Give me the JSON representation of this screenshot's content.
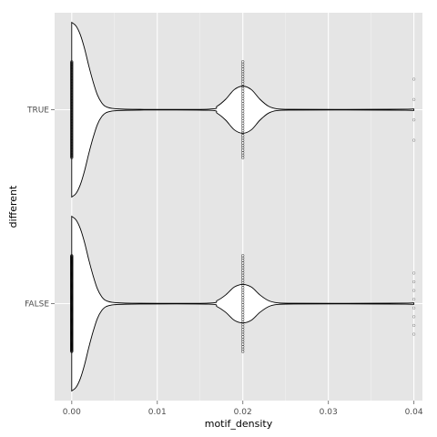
{
  "chart_data": {
    "type": "violin",
    "orientation": "horizontal",
    "xlabel": "motif_density",
    "ylabel": "different",
    "xlim": [
      -0.002,
      0.041
    ],
    "x_ticks": [
      0.0,
      0.01,
      0.02,
      0.03,
      0.04
    ],
    "x_tick_labels": [
      "0.00",
      "0.01",
      "0.02",
      "0.03",
      "0.04"
    ],
    "categories": [
      "FALSE",
      "TRUE"
    ],
    "grid": true,
    "background": "#e5e5e5",
    "grid_color": "#ffffff",
    "violin_fill": "#ffffff",
    "violin_stroke": "#000000",
    "point_color": "#000000",
    "violins": [
      {
        "category": "TRUE",
        "profile": [
          [
            0.0,
            1.0
          ],
          [
            0.0005,
            0.96
          ],
          [
            0.001,
            0.86
          ],
          [
            0.0015,
            0.7
          ],
          [
            0.002,
            0.5
          ],
          [
            0.0025,
            0.32
          ],
          [
            0.003,
            0.17
          ],
          [
            0.0035,
            0.08
          ],
          [
            0.004,
            0.035
          ],
          [
            0.005,
            0.012
          ],
          [
            0.008,
            0.004
          ],
          [
            0.016,
            0.006
          ],
          [
            0.017,
            0.04
          ],
          [
            0.018,
            0.12
          ],
          [
            0.019,
            0.23
          ],
          [
            0.02,
            0.27
          ],
          [
            0.021,
            0.23
          ],
          [
            0.022,
            0.12
          ],
          [
            0.023,
            0.04
          ],
          [
            0.024,
            0.01
          ],
          [
            0.026,
            0.004
          ],
          [
            0.035,
            0.004
          ],
          [
            0.039,
            0.006
          ],
          [
            0.04,
            0.009
          ]
        ],
        "points_x": [
          0.0,
          0.02,
          0.04
        ],
        "point_counts": [
          140,
          40,
          4
        ]
      },
      {
        "category": "FALSE",
        "profile": [
          [
            0.0,
            1.0
          ],
          [
            0.0005,
            0.96
          ],
          [
            0.001,
            0.86
          ],
          [
            0.0015,
            0.7
          ],
          [
            0.002,
            0.5
          ],
          [
            0.0025,
            0.32
          ],
          [
            0.003,
            0.17
          ],
          [
            0.0035,
            0.08
          ],
          [
            0.004,
            0.035
          ],
          [
            0.005,
            0.012
          ],
          [
            0.008,
            0.004
          ],
          [
            0.016,
            0.006
          ],
          [
            0.017,
            0.035
          ],
          [
            0.018,
            0.1
          ],
          [
            0.019,
            0.19
          ],
          [
            0.02,
            0.22
          ],
          [
            0.021,
            0.19
          ],
          [
            0.022,
            0.1
          ],
          [
            0.023,
            0.035
          ],
          [
            0.024,
            0.01
          ],
          [
            0.026,
            0.004
          ],
          [
            0.035,
            0.004
          ],
          [
            0.039,
            0.006
          ],
          [
            0.04,
            0.009
          ]
        ],
        "points_x": [
          0.0,
          0.02,
          0.04
        ],
        "point_counts": [
          220,
          40,
          8
        ]
      }
    ]
  }
}
